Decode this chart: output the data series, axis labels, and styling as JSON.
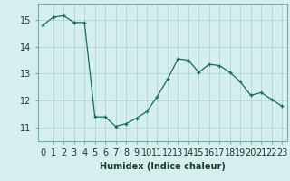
{
  "x": [
    0,
    1,
    2,
    3,
    4,
    5,
    6,
    7,
    8,
    9,
    10,
    11,
    12,
    13,
    14,
    15,
    16,
    17,
    18,
    19,
    20,
    21,
    22,
    23
  ],
  "y": [
    14.8,
    15.1,
    15.15,
    14.9,
    14.9,
    11.4,
    11.4,
    11.05,
    11.15,
    11.35,
    11.6,
    12.15,
    12.8,
    13.55,
    13.5,
    13.05,
    13.35,
    13.3,
    13.05,
    12.7,
    12.2,
    12.3,
    12.05,
    11.8
  ],
  "line_color": "#1a6b5a",
  "marker": "+",
  "marker_size": 3,
  "bg_color": "#d4efed",
  "grid_color": "#b2d8d4",
  "xlabel": "Humidex (Indice chaleur)",
  "xlabel_fontsize": 7,
  "tick_fontsize": 7,
  "ylim": [
    10.5,
    15.6
  ],
  "xlim": [
    -0.5,
    23.5
  ],
  "yticks": [
    11,
    12,
    13,
    14,
    15
  ],
  "xticks": [
    0,
    1,
    2,
    3,
    4,
    5,
    6,
    7,
    8,
    9,
    10,
    11,
    12,
    13,
    14,
    15,
    16,
    17,
    18,
    19,
    20,
    21,
    22,
    23
  ]
}
